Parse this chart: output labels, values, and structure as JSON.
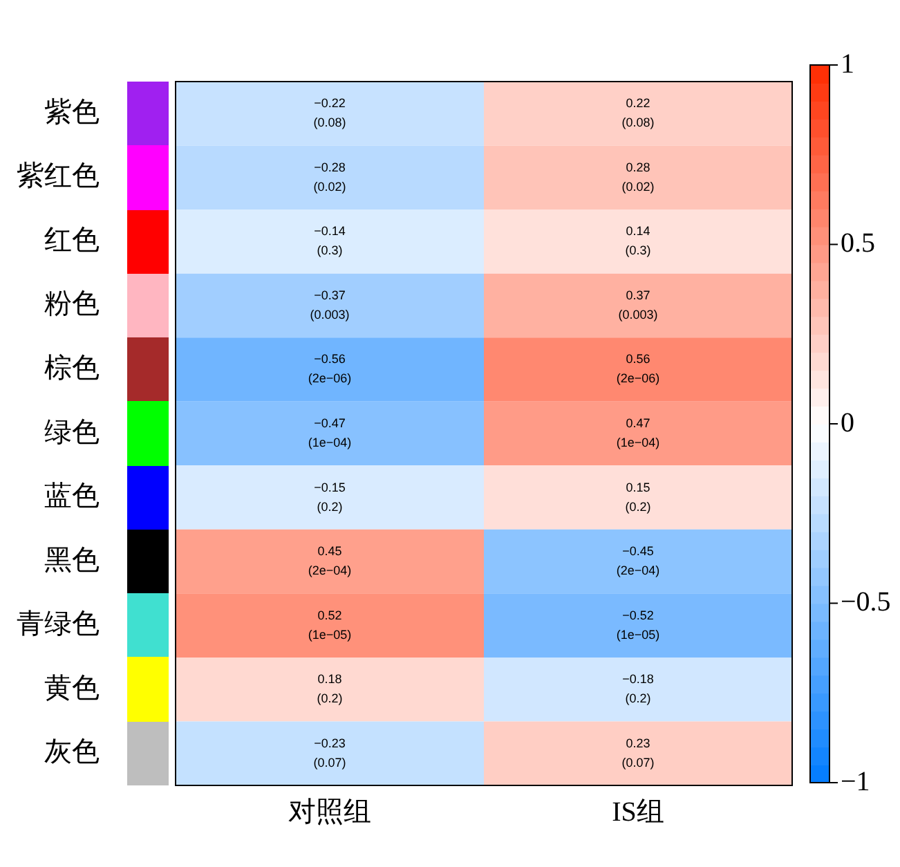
{
  "chart_data": {
    "type": "heatmap",
    "categories": [
      "对照组",
      "IS组"
    ],
    "y_categories": [
      "紫色",
      "紫红色",
      "红色",
      "粉色",
      "棕色",
      "绿色",
      "蓝色",
      "黑色",
      "青绿色",
      "黄色",
      "灰色"
    ],
    "cells": [
      [
        -0.22,
        0.22
      ],
      [
        -0.28,
        0.28
      ],
      [
        -0.14,
        0.14
      ],
      [
        -0.37,
        0.37
      ],
      [
        -0.56,
        0.56
      ],
      [
        -0.47,
        0.47
      ],
      [
        -0.15,
        0.15
      ],
      [
        0.45,
        -0.45
      ],
      [
        0.52,
        -0.52
      ],
      [
        0.18,
        -0.18
      ],
      [
        -0.23,
        0.23
      ]
    ],
    "cell_labels": [
      [
        "−0.22\n(0.08)",
        "0.22\n(0.08)"
      ],
      [
        "−0.28\n(0.02)",
        "0.28\n(0.02)"
      ],
      [
        "−0.14\n(0.3)",
        "0.14\n(0.3)"
      ],
      [
        "−0.37\n(0.003)",
        "0.37\n(0.003)"
      ],
      [
        "−0.56\n(2e−06)",
        "0.56\n(2e−06)"
      ],
      [
        "−0.47\n(1e−04)",
        "0.47\n(1e−04)"
      ],
      [
        "−0.15\n(0.2)",
        "0.15\n(0.2)"
      ],
      [
        "0.45\n(2e−04)",
        "−0.45\n(2e−04)"
      ],
      [
        "0.52\n(1e−05)",
        "−0.52\n(1e−05)"
      ],
      [
        "0.18\n(0.2)",
        "−0.18\n(0.2)"
      ],
      [
        "−0.23\n(0.07)",
        "0.23\n(0.07)"
      ]
    ],
    "clim": [
      -1,
      1
    ],
    "cticks": [
      {
        "value": 1,
        "label": "1"
      },
      {
        "value": 0.5,
        "label": "0.5"
      },
      {
        "value": 0,
        "label": "0"
      },
      {
        "value": -0.5,
        "label": "−0.5"
      },
      {
        "value": -1,
        "label": "−1"
      }
    ]
  }
}
